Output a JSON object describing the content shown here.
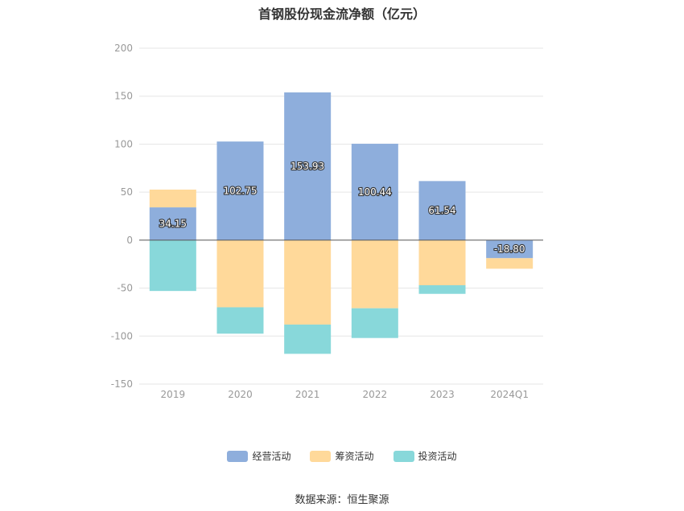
{
  "chart_data": {
    "type": "bar",
    "stacked": true,
    "title": "首钢股份现金流净额（亿元）",
    "categories": [
      "2019",
      "2020",
      "2021",
      "2022",
      "2023",
      "2024Q1"
    ],
    "series": [
      {
        "name": "经营活动",
        "color": "#8eaedc",
        "values": [
          34.15,
          102.75,
          153.93,
          100.44,
          61.54,
          -18.8
        ],
        "labels": [
          "34.15",
          "102.75",
          "153.93",
          "100.44",
          "61.54",
          "-18.80"
        ]
      },
      {
        "name": "筹资活动",
        "color": "#ffd99a",
        "values": [
          18.5,
          -70.0,
          -88.0,
          -71.0,
          -47.0,
          -11.0
        ]
      },
      {
        "name": "投资活动",
        "color": "#88d8da",
        "values": [
          -53.0,
          -27.5,
          -30.5,
          -31.0,
          -9.0,
          0
        ]
      }
    ],
    "ylim": [
      -150,
      200
    ],
    "yticks": [
      200,
      150,
      100,
      50,
      0,
      -50,
      -100,
      -150
    ],
    "grid": true,
    "legend_position": "bottom"
  },
  "source": "数据来源：恒生聚源"
}
